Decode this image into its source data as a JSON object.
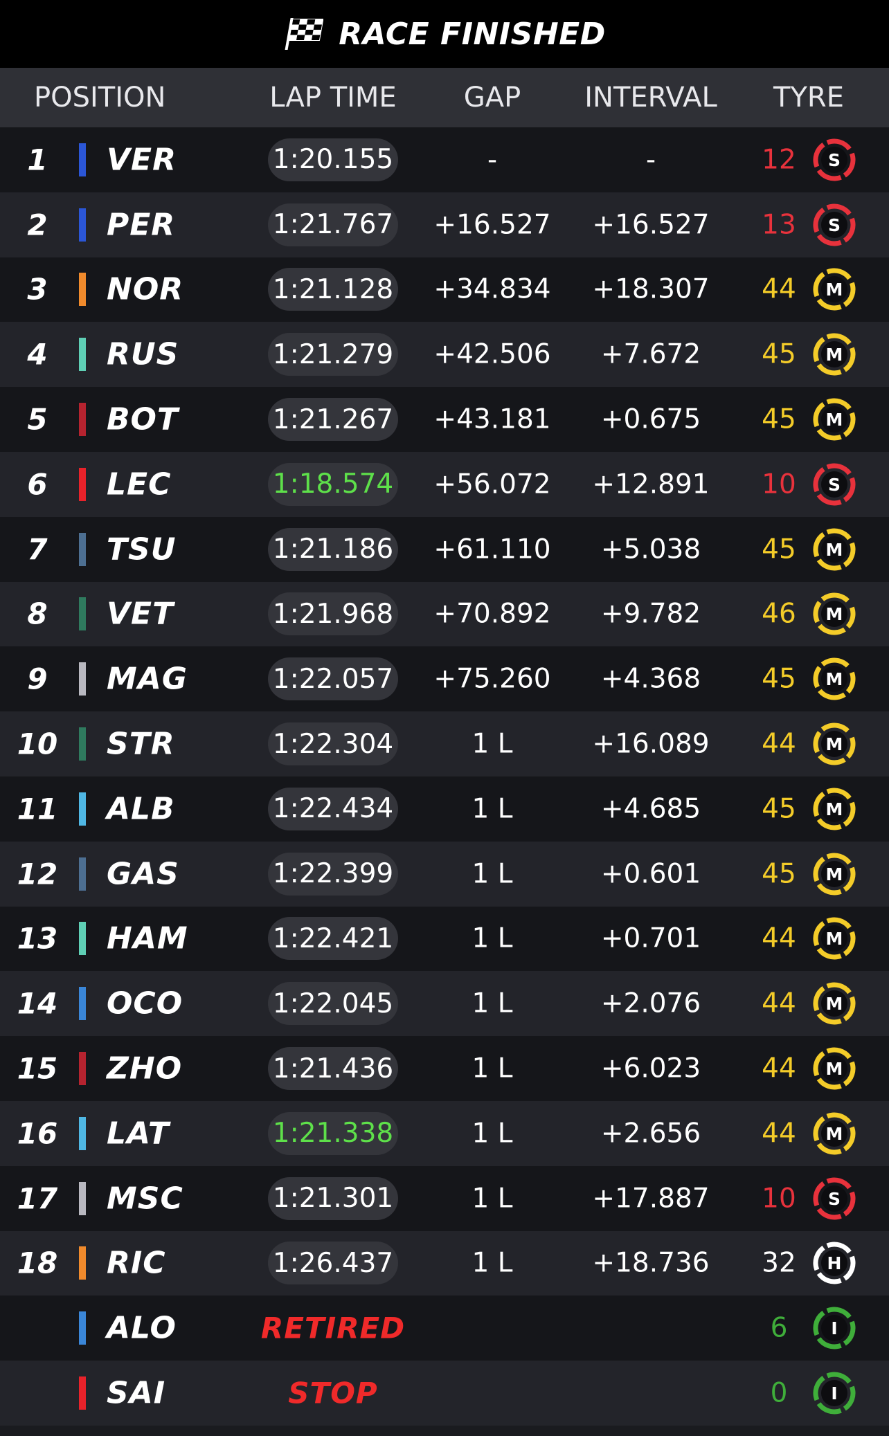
{
  "header": {
    "title": "RACE FINISHED",
    "icon": "checkered-flag-icon"
  },
  "columns": {
    "position": "POSITION",
    "lap_time": "LAP TIME",
    "gap": "GAP",
    "interval": "INTERVAL",
    "tyre": "TYRE"
  },
  "colors": {
    "tyre_soft": "#e8323c",
    "tyre_medium": "#f4cc29",
    "tyre_hard": "#ffffff",
    "tyre_inter": "#3fae3a",
    "best_lap": "#5ee04a",
    "status": "#f02a2a"
  },
  "drivers": [
    {
      "pos": "1",
      "code": "VER",
      "team_color": "#2b56d6",
      "lap": "1:20.155",
      "best": false,
      "gap": "-",
      "interval": "-",
      "laps": "12",
      "tyre": "S",
      "tyre_state": "normal"
    },
    {
      "pos": "2",
      "code": "PER",
      "team_color": "#2b56d6",
      "lap": "1:21.767",
      "best": false,
      "gap": "+16.527",
      "interval": "+16.527",
      "laps": "13",
      "tyre": "S",
      "tyre_state": "normal"
    },
    {
      "pos": "3",
      "code": "NOR",
      "team_color": "#f08a2c",
      "lap": "1:21.128",
      "best": false,
      "gap": "+34.834",
      "interval": "+18.307",
      "laps": "44",
      "tyre": "M",
      "tyre_state": "normal"
    },
    {
      "pos": "4",
      "code": "RUS",
      "team_color": "#5fcfb5",
      "lap": "1:21.279",
      "best": false,
      "gap": "+42.506",
      "interval": "+7.672",
      "laps": "45",
      "tyre": "M",
      "tyre_state": "normal"
    },
    {
      "pos": "5",
      "code": "BOT",
      "team_color": "#b5232f",
      "lap": "1:21.267",
      "best": false,
      "gap": "+43.181",
      "interval": "+0.675",
      "laps": "45",
      "tyre": "M",
      "tyre_state": "normal"
    },
    {
      "pos": "6",
      "code": "LEC",
      "team_color": "#e8222a",
      "lap": "1:18.574",
      "best": true,
      "gap": "+56.072",
      "interval": "+12.891",
      "laps": "10",
      "tyre": "S",
      "tyre_state": "normal"
    },
    {
      "pos": "7",
      "code": "TSU",
      "team_color": "#4d6f92",
      "lap": "1:21.186",
      "best": false,
      "gap": "+61.110",
      "interval": "+5.038",
      "laps": "45",
      "tyre": "M",
      "tyre_state": "normal"
    },
    {
      "pos": "8",
      "code": "VET",
      "team_color": "#2f7a5e",
      "lap": "1:21.968",
      "best": false,
      "gap": "+70.892",
      "interval": "+9.782",
      "laps": "46",
      "tyre": "M",
      "tyre_state": "used"
    },
    {
      "pos": "9",
      "code": "MAG",
      "team_color": "#b8b8c0",
      "lap": "1:22.057",
      "best": false,
      "gap": "+75.260",
      "interval": "+4.368",
      "laps": "45",
      "tyre": "M",
      "tyre_state": "used"
    },
    {
      "pos": "10",
      "code": "STR",
      "team_color": "#2f7a5e",
      "lap": "1:22.304",
      "best": false,
      "gap": "1 L",
      "interval": "+16.089",
      "laps": "44",
      "tyre": "M",
      "tyre_state": "used"
    },
    {
      "pos": "11",
      "code": "ALB",
      "team_color": "#4fb7e4",
      "lap": "1:22.434",
      "best": false,
      "gap": "1 L",
      "interval": "+4.685",
      "laps": "45",
      "tyre": "M",
      "tyre_state": "normal"
    },
    {
      "pos": "12",
      "code": "GAS",
      "team_color": "#4d6f92",
      "lap": "1:22.399",
      "best": false,
      "gap": "1 L",
      "interval": "+0.601",
      "laps": "45",
      "tyre": "M",
      "tyre_state": "normal"
    },
    {
      "pos": "13",
      "code": "HAM",
      "team_color": "#5fcfb5",
      "lap": "1:22.421",
      "best": false,
      "gap": "1 L",
      "interval": "+0.701",
      "laps": "44",
      "tyre": "M",
      "tyre_state": "normal"
    },
    {
      "pos": "14",
      "code": "OCO",
      "team_color": "#3a86d8",
      "lap": "1:22.045",
      "best": false,
      "gap": "1 L",
      "interval": "+2.076",
      "laps": "44",
      "tyre": "M",
      "tyre_state": "normal"
    },
    {
      "pos": "15",
      "code": "ZHO",
      "team_color": "#b5232f",
      "lap": "1:21.436",
      "best": false,
      "gap": "1 L",
      "interval": "+6.023",
      "laps": "44",
      "tyre": "M",
      "tyre_state": "normal"
    },
    {
      "pos": "16",
      "code": "LAT",
      "team_color": "#4fb7e4",
      "lap": "1:21.338",
      "best": true,
      "gap": "1 L",
      "interval": "+2.656",
      "laps": "44",
      "tyre": "M",
      "tyre_state": "normal"
    },
    {
      "pos": "17",
      "code": "MSC",
      "team_color": "#b8b8c0",
      "lap": "1:21.301",
      "best": false,
      "gap": "1 L",
      "interval": "+17.887",
      "laps": "10",
      "tyre": "S",
      "tyre_state": "normal"
    },
    {
      "pos": "18",
      "code": "RIC",
      "team_color": "#f08a2c",
      "lap": "1:26.437",
      "best": false,
      "gap": "1 L",
      "interval": "+18.736",
      "laps": "32",
      "tyre": "H",
      "tyre_state": "normal"
    },
    {
      "pos": "",
      "code": "ALO",
      "team_color": "#3a86d8",
      "status": "RETIRED",
      "laps": "6",
      "tyre": "I",
      "tyre_state": "normal"
    },
    {
      "pos": "",
      "code": "SAI",
      "team_color": "#e8222a",
      "status": "STOP",
      "laps": "0",
      "tyre": "I",
      "tyre_state": "normal"
    }
  ]
}
